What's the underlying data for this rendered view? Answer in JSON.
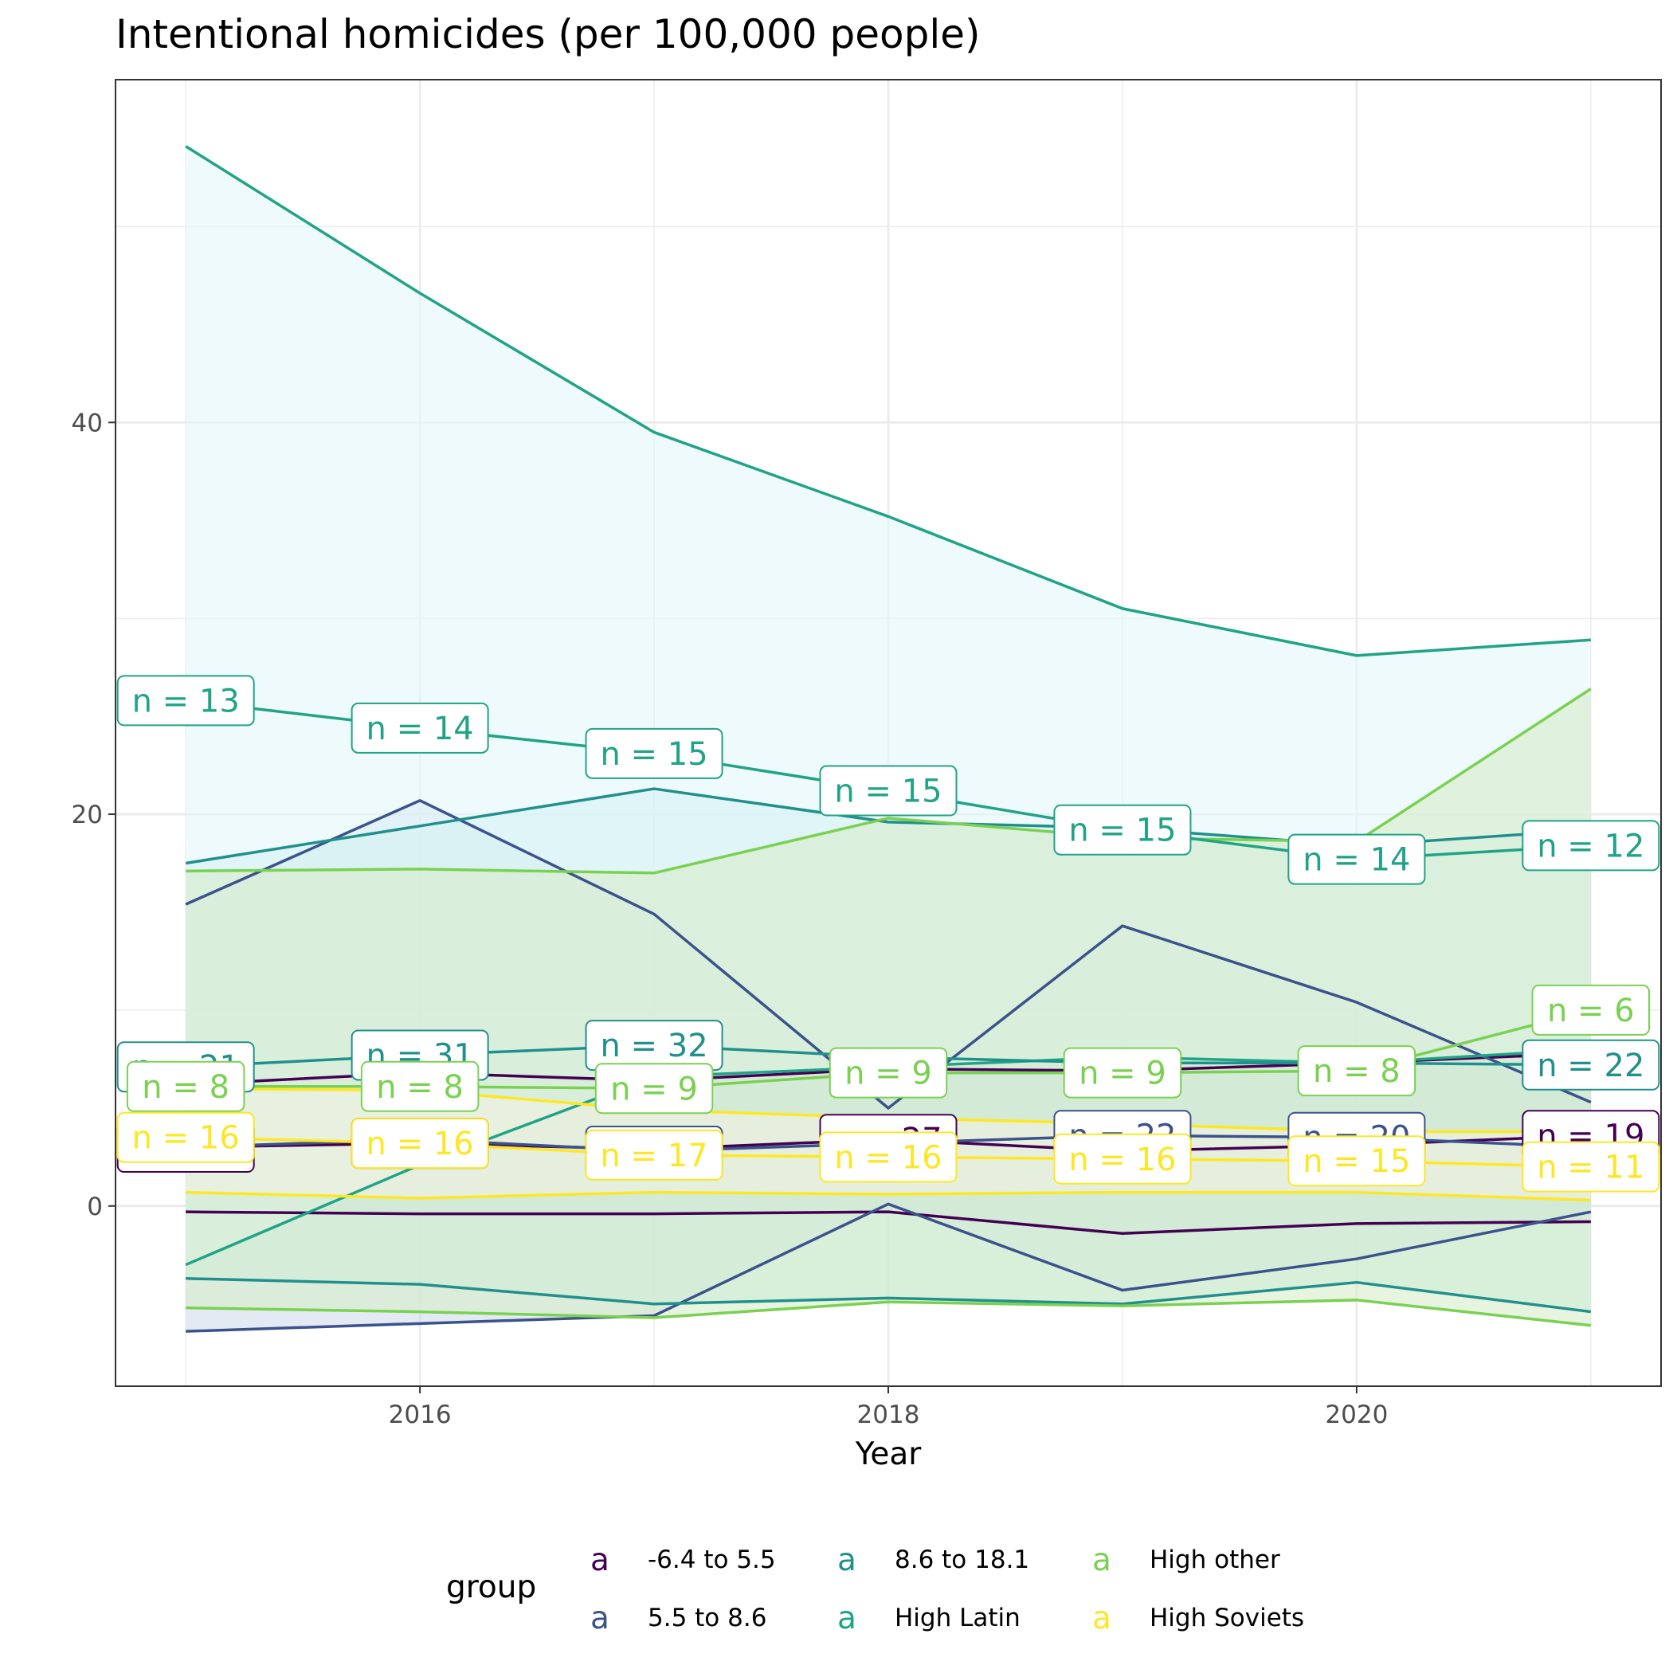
{
  "chart_data": {
    "type": "line",
    "title": "Intentional homicides (per 100,000 people)",
    "xlabel": "Year",
    "ylabel": "",
    "x": [
      2015,
      2016,
      2017,
      2018,
      2019,
      2020,
      2021
    ],
    "xlim": [
      2014.7,
      2021.3
    ],
    "ylim": [
      -9.2,
      57.5
    ],
    "x_ticks": [
      2016,
      2018,
      2020
    ],
    "y_ticks": [
      0,
      20,
      40
    ],
    "x_tick_labels": [
      "2016",
      "2018",
      "2020"
    ],
    "y_tick_labels": [
      "0",
      "20",
      "40"
    ],
    "grid": true,
    "legend": {
      "title": "group",
      "position": "bottom",
      "key_glyph": "a"
    },
    "series": [
      {
        "name": "-6.4 to 5.5",
        "color": "#440154",
        "fill": "#DDD2DD",
        "mean": [
          3.0,
          3.2,
          2.9,
          3.4,
          2.8,
          3.1,
          3.6
        ],
        "upper": [
          6.2,
          6.8,
          6.4,
          7.0,
          6.9,
          7.3,
          7.8
        ],
        "lower": [
          -0.3,
          -0.4,
          -0.4,
          -0.3,
          -1.4,
          -0.9,
          -0.8
        ],
        "n": [
          "21",
          "16",
          "",
          "27",
          "",
          "",
          "19"
        ]
      },
      {
        "name": "5.5 to 8.6",
        "color": "#3B528B",
        "fill": "#D0DCEC",
        "mean": [
          3.0,
          3.4,
          2.8,
          3.2,
          3.6,
          3.5,
          3.0
        ],
        "upper": [
          15.4,
          20.7,
          14.9,
          5.0,
          14.3,
          10.4,
          5.3
        ],
        "lower": [
          -6.4,
          -6.0,
          -5.6,
          0.1,
          -4.3,
          -2.7,
          -0.3
        ],
        "n": [
          "",
          "",
          "21",
          "",
          "22",
          "20",
          ""
        ]
      },
      {
        "name": "8.6 to 18.1",
        "color": "#21908C",
        "fill": "#C2EAEA",
        "mean": [
          7.1,
          7.7,
          8.2,
          7.6,
          7.3,
          7.3,
          7.2
        ],
        "upper": [
          17.5,
          19.4,
          21.3,
          19.6,
          19.3,
          18.4,
          19.2
        ],
        "lower": [
          -3.7,
          -4.0,
          -5.0,
          -4.7,
          -5.0,
          -3.9,
          -5.4
        ],
        "n": [
          "21",
          "31",
          "32",
          "",
          "",
          "",
          "22"
        ]
      },
      {
        "name": "High Latin",
        "color": "#20A386",
        "fill": "#E3F7FA",
        "mean": [
          25.8,
          24.4,
          23.1,
          21.2,
          19.2,
          17.7,
          18.4
        ],
        "upper": [
          54.1,
          46.6,
          39.5,
          35.2,
          30.5,
          28.1,
          28.9
        ],
        "lower": [
          -3.0,
          2.1,
          6.6,
          7.1,
          7.6,
          7.3,
          8.0
        ],
        "n": [
          "13",
          "14",
          "15",
          "15",
          "15",
          "14",
          "12"
        ]
      },
      {
        "name": "High other",
        "color": "#7AD151",
        "fill": "#D7ECC9",
        "mean": [
          6.1,
          6.1,
          6.0,
          6.8,
          6.8,
          6.9,
          10.0
        ],
        "upper": [
          17.1,
          17.2,
          17.0,
          19.8,
          18.8,
          18.6,
          26.4
        ],
        "lower": [
          -5.2,
          -5.4,
          -5.7,
          -4.9,
          -5.1,
          -4.8,
          -6.1
        ],
        "n": [
          "8",
          "8",
          "9",
          "9",
          "9",
          "8",
          "6"
        ]
      },
      {
        "name": "High Soviets",
        "color": "#FDE725",
        "fill": "#F3F2E1",
        "mean": [
          3.5,
          3.2,
          2.6,
          2.5,
          2.4,
          2.3,
          2.0
        ],
        "upper": [
          6.0,
          5.9,
          4.9,
          4.5,
          4.2,
          3.8,
          3.8
        ],
        "lower": [
          0.7,
          0.4,
          0.7,
          0.6,
          0.7,
          0.7,
          0.3
        ],
        "n": [
          "16",
          "16",
          "17",
          "16",
          "16",
          "15",
          "11"
        ]
      }
    ]
  }
}
